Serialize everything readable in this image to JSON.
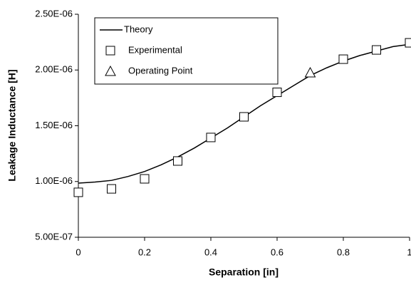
{
  "chart_data": {
    "type": "line",
    "x_label": "Separation [in]",
    "y_label": "Leakage Inductance [H]",
    "xlim": [
      0,
      1
    ],
    "xticks": [
      0,
      0.2,
      0.4,
      0.6,
      0.8,
      1
    ],
    "ylim": [
      5e-07,
      2.5e-06
    ],
    "yticks": [
      {
        "value": 5e-07,
        "label": "5.00E-07"
      },
      {
        "value": 1e-06,
        "label": "1.00E-06"
      },
      {
        "value": 1.5e-06,
        "label": "1.50E-06"
      },
      {
        "value": 2e-06,
        "label": "2.00E-06"
      },
      {
        "value": 2.5e-06,
        "label": "2.50E-06"
      }
    ],
    "series": [
      {
        "name": "Theory",
        "style": "line",
        "color": "#000000",
        "x": [
          0,
          0.05,
          0.1,
          0.15,
          0.2,
          0.25,
          0.3,
          0.35,
          0.4,
          0.45,
          0.5,
          0.55,
          0.6,
          0.65,
          0.7,
          0.75,
          0.8,
          0.85,
          0.9,
          0.95,
          1
        ],
        "values": [
          9.86e-07,
          9.95e-07,
          1.01e-06,
          1.045e-06,
          1.09e-06,
          1.15e-06,
          1.22e-06,
          1.3e-06,
          1.39e-06,
          1.48e-06,
          1.58e-06,
          1.68e-06,
          1.77e-06,
          1.86e-06,
          1.95e-06,
          2.02e-06,
          2.08e-06,
          2.13e-06,
          2.17e-06,
          2.21e-06,
          2.23e-06
        ]
      },
      {
        "name": "Experimental",
        "style": "square",
        "color": "#000000",
        "x": [
          0,
          0.1,
          0.2,
          0.3,
          0.4,
          0.5,
          0.6,
          0.8,
          0.9,
          1
        ],
        "values": [
          9.03e-07,
          9.34e-07,
          1.024e-06,
          1.184e-06,
          1.395e-06,
          1.58e-06,
          1.8e-06,
          2.097e-06,
          2.18e-06,
          2.244e-06
        ]
      },
      {
        "name": "Operating Point",
        "style": "triangle",
        "color": "#000000",
        "x": [
          0.7
        ],
        "values": [
          1.976e-06
        ]
      }
    ]
  }
}
